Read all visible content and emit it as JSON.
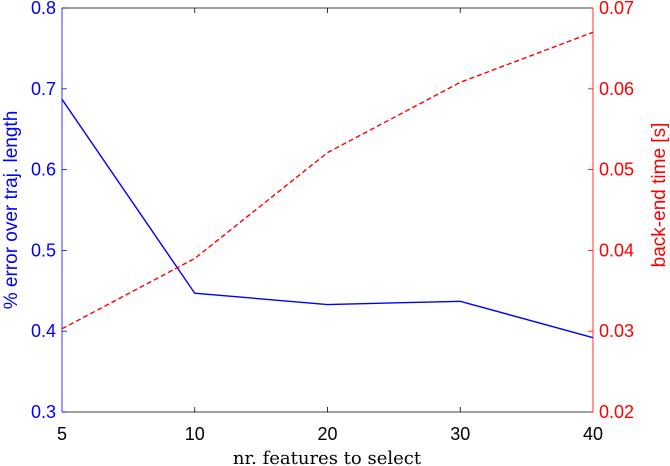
{
  "chart_data": {
    "type": "line",
    "x_tick_labels": [
      "5",
      "10",
      "20",
      "30",
      "40"
    ],
    "xlabel": "nr. features to select",
    "grid": false,
    "legend": "none",
    "left_axis": {
      "label": "% error over traj. length",
      "ylim": [
        0.3,
        0.8
      ],
      "ticks": [
        "0.3",
        "0.4",
        "0.5",
        "0.6",
        "0.7",
        "0.8"
      ],
      "color": "#0000ff"
    },
    "right_axis": {
      "label": "back-end time [s]",
      "ylim": [
        0.02,
        0.07
      ],
      "ticks": [
        "0.02",
        "0.03",
        "0.04",
        "0.05",
        "0.06",
        "0.07"
      ],
      "color": "#ff0000"
    },
    "series": [
      {
        "axis": "left",
        "style": "solid",
        "color": "#0000ff",
        "x": [
          "5",
          "10",
          "20",
          "30",
          "40"
        ],
        "values": [
          0.687,
          0.447,
          0.433,
          0.437,
          0.392
        ]
      },
      {
        "axis": "right",
        "style": "dashed",
        "color": "#ff0000",
        "x": [
          "5",
          "10",
          "20",
          "30",
          "40"
        ],
        "values": [
          0.0303,
          0.039,
          0.0521,
          0.0608,
          0.067
        ]
      }
    ]
  }
}
